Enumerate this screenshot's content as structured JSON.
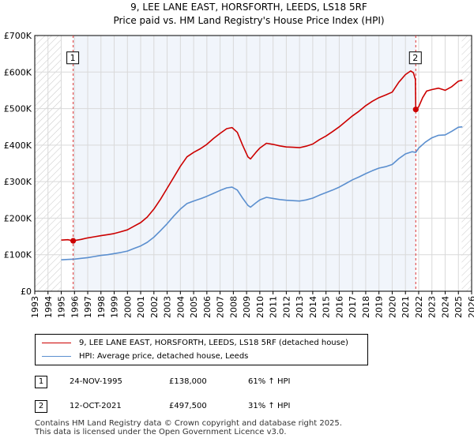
{
  "chart_data": {
    "type": "line",
    "title": "9, LEE LANE EAST, HORSFORTH, LEEDS, LS18 5RF",
    "subtitle": "Price paid vs. HM Land Registry's House Price Index (HPI)",
    "xlim": [
      1993,
      2026
    ],
    "ylim": [
      0,
      700000
    ],
    "x_ticks": [
      "1993",
      "1994",
      "1995",
      "1996",
      "1997",
      "1998",
      "1999",
      "2000",
      "2001",
      "2002",
      "2003",
      "2004",
      "2005",
      "2006",
      "2007",
      "2008",
      "2009",
      "2010",
      "2011",
      "2012",
      "2013",
      "2014",
      "2015",
      "2016",
      "2017",
      "2018",
      "2019",
      "2020",
      "2021",
      "2022",
      "2023",
      "2024",
      "2025",
      "2026"
    ],
    "y_ticks": [
      {
        "value": 0,
        "label": "£0"
      },
      {
        "value": 100000,
        "label": "£100K"
      },
      {
        "value": 200000,
        "label": "£200K"
      },
      {
        "value": 300000,
        "label": "£300K"
      },
      {
        "value": 400000,
        "label": "£400K"
      },
      {
        "value": 500000,
        "label": "£500K"
      },
      {
        "value": 600000,
        "label": "£600K"
      },
      {
        "value": 700000,
        "label": "£700K"
      }
    ],
    "hatched_ranges": [
      [
        1993,
        1995.0
      ],
      [
        2025.25,
        2026
      ]
    ],
    "shaded_range": [
      1995.9,
      2021.78
    ],
    "series": [
      {
        "name": "9, LEE LANE EAST, HORSFORTH, LEEDS, LS18 5RF (detached house)",
        "color": "#cc0000",
        "points": [
          [
            1995.0,
            140000
          ],
          [
            1995.5,
            141000
          ],
          [
            1995.9,
            138000
          ],
          [
            1996.5,
            142000
          ],
          [
            1997,
            146000
          ],
          [
            1997.5,
            149000
          ],
          [
            1998,
            152000
          ],
          [
            1998.5,
            155000
          ],
          [
            1999,
            158000
          ],
          [
            1999.5,
            163000
          ],
          [
            2000,
            168000
          ],
          [
            2000.5,
            178000
          ],
          [
            2001,
            188000
          ],
          [
            2001.5,
            203000
          ],
          [
            2002,
            225000
          ],
          [
            2002.5,
            252000
          ],
          [
            2003,
            282000
          ],
          [
            2003.5,
            312000
          ],
          [
            2004,
            342000
          ],
          [
            2004.5,
            368000
          ],
          [
            2005,
            380000
          ],
          [
            2005.5,
            390000
          ],
          [
            2006,
            402000
          ],
          [
            2006.5,
            418000
          ],
          [
            2007,
            432000
          ],
          [
            2007.5,
            445000
          ],
          [
            2007.9,
            448000
          ],
          [
            2008.3,
            435000
          ],
          [
            2008.7,
            400000
          ],
          [
            2009.1,
            368000
          ],
          [
            2009.3,
            362000
          ],
          [
            2009.7,
            380000
          ],
          [
            2010,
            392000
          ],
          [
            2010.5,
            405000
          ],
          [
            2011,
            402000
          ],
          [
            2011.5,
            398000
          ],
          [
            2012,
            395000
          ],
          [
            2012.5,
            394000
          ],
          [
            2013,
            393000
          ],
          [
            2013.5,
            397000
          ],
          [
            2014,
            403000
          ],
          [
            2014.5,
            415000
          ],
          [
            2015,
            425000
          ],
          [
            2015.5,
            437000
          ],
          [
            2016,
            450000
          ],
          [
            2016.5,
            465000
          ],
          [
            2017,
            480000
          ],
          [
            2017.5,
            493000
          ],
          [
            2018,
            508000
          ],
          [
            2018.5,
            520000
          ],
          [
            2019,
            530000
          ],
          [
            2019.5,
            537000
          ],
          [
            2020,
            545000
          ],
          [
            2020.5,
            572000
          ],
          [
            2021,
            593000
          ],
          [
            2021.4,
            603000
          ],
          [
            2021.6,
            598000
          ],
          [
            2021.75,
            580000
          ],
          [
            2021.78,
            497500
          ],
          [
            2022,
            505000
          ],
          [
            2022.3,
            530000
          ],
          [
            2022.6,
            548000
          ],
          [
            2023,
            552000
          ],
          [
            2023.5,
            556000
          ],
          [
            2024,
            550000
          ],
          [
            2024.5,
            560000
          ],
          [
            2025,
            575000
          ],
          [
            2025.3,
            578000
          ]
        ]
      },
      {
        "name": "HPI: Average price, detached house, Leeds",
        "color": "#5b8fcf",
        "points": [
          [
            1995.0,
            86000
          ],
          [
            1995.5,
            87000
          ],
          [
            1996,
            88000
          ],
          [
            1996.5,
            90000
          ],
          [
            1997,
            92000
          ],
          [
            1997.5,
            95000
          ],
          [
            1998,
            98000
          ],
          [
            1998.5,
            100000
          ],
          [
            1999,
            103000
          ],
          [
            1999.5,
            106000
          ],
          [
            2000,
            110000
          ],
          [
            2000.5,
            117000
          ],
          [
            2001,
            124000
          ],
          [
            2001.5,
            134000
          ],
          [
            2002,
            148000
          ],
          [
            2002.5,
            166000
          ],
          [
            2003,
            185000
          ],
          [
            2003.5,
            206000
          ],
          [
            2004,
            225000
          ],
          [
            2004.5,
            240000
          ],
          [
            2005,
            247000
          ],
          [
            2005.5,
            253000
          ],
          [
            2006,
            260000
          ],
          [
            2006.5,
            268000
          ],
          [
            2007,
            276000
          ],
          [
            2007.5,
            283000
          ],
          [
            2007.9,
            285000
          ],
          [
            2008.3,
            277000
          ],
          [
            2008.7,
            255000
          ],
          [
            2009.1,
            235000
          ],
          [
            2009.3,
            230000
          ],
          [
            2009.7,
            242000
          ],
          [
            2010,
            250000
          ],
          [
            2010.5,
            257000
          ],
          [
            2011,
            254000
          ],
          [
            2011.5,
            251000
          ],
          [
            2012,
            249000
          ],
          [
            2012.5,
            248000
          ],
          [
            2013,
            247000
          ],
          [
            2013.5,
            250000
          ],
          [
            2014,
            255000
          ],
          [
            2014.5,
            263000
          ],
          [
            2015,
            270000
          ],
          [
            2015.5,
            277000
          ],
          [
            2016,
            285000
          ],
          [
            2016.5,
            295000
          ],
          [
            2017,
            305000
          ],
          [
            2017.5,
            313000
          ],
          [
            2018,
            322000
          ],
          [
            2018.5,
            330000
          ],
          [
            2019,
            337000
          ],
          [
            2019.5,
            341000
          ],
          [
            2020,
            347000
          ],
          [
            2020.5,
            363000
          ],
          [
            2021,
            376000
          ],
          [
            2021.5,
            382000
          ],
          [
            2021.78,
            380000
          ],
          [
            2022,
            392000
          ],
          [
            2022.5,
            408000
          ],
          [
            2023,
            420000
          ],
          [
            2023.5,
            427000
          ],
          [
            2024,
            428000
          ],
          [
            2024.5,
            438000
          ],
          [
            2025,
            449000
          ],
          [
            2025.3,
            450000
          ]
        ]
      }
    ],
    "markers": [
      {
        "label": "1",
        "x": 1995.9,
        "y": 138000,
        "label_y": 640000
      },
      {
        "label": "2",
        "x": 2021.78,
        "y": 497500,
        "label_y": 640000
      }
    ]
  },
  "legend": [
    {
      "label": "9, LEE LANE EAST, HORSFORTH, LEEDS, LS18 5RF (detached house)",
      "color": "#cc0000"
    },
    {
      "label": "HPI: Average price, detached house, Leeds",
      "color": "#5b8fcf"
    }
  ],
  "transactions": [
    {
      "num": "1",
      "date": "24-NOV-1995",
      "price": "£138,000",
      "hpi": "61% ↑ HPI"
    },
    {
      "num": "2",
      "date": "12-OCT-2021",
      "price": "£497,500",
      "hpi": "31% ↑ HPI"
    }
  ],
  "footer": {
    "line1": "Contains HM Land Registry data © Crown copyright and database right 2025.",
    "line2": "This data is licensed under the Open Government Licence v3.0."
  }
}
